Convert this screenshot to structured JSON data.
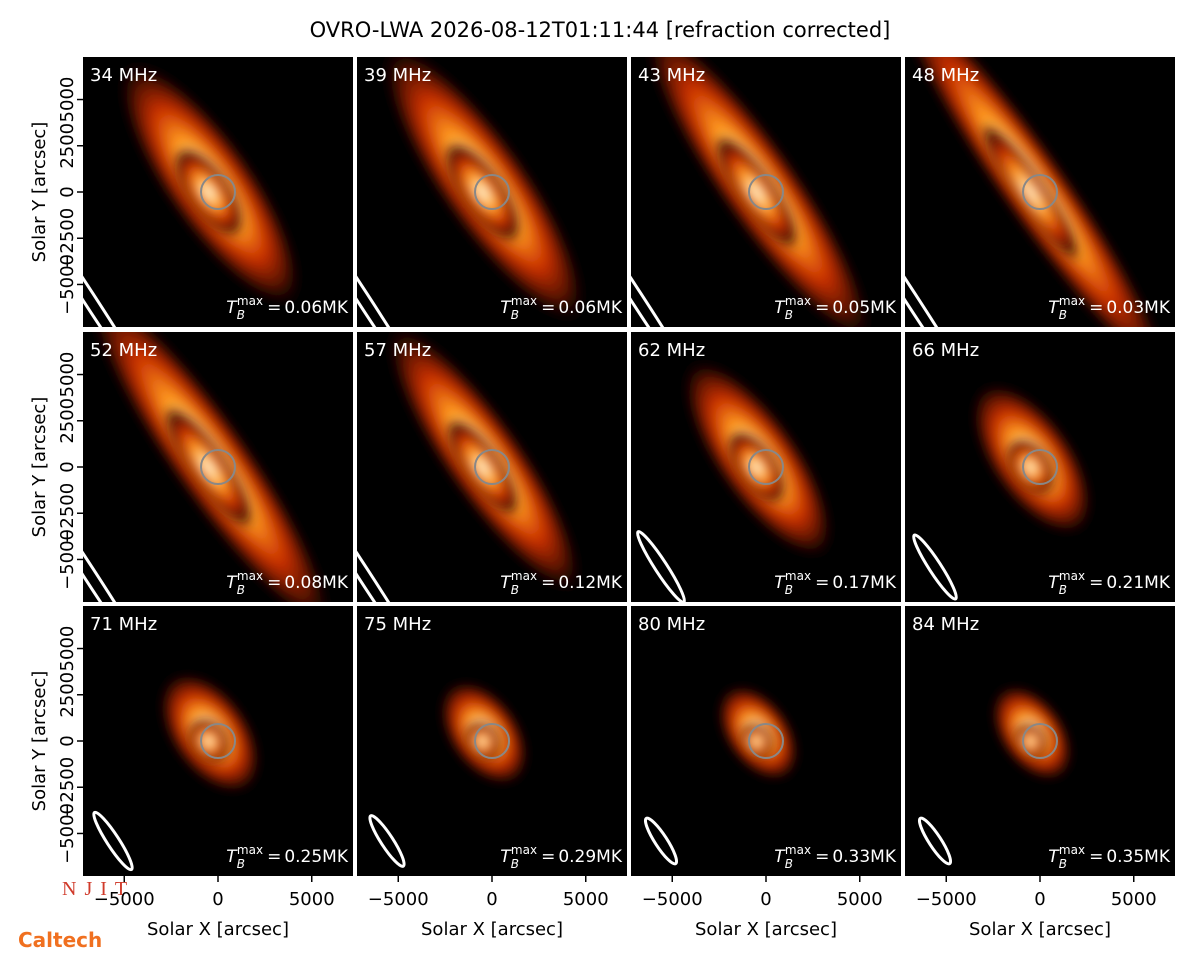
{
  "chart_data": {
    "type": "image-grid",
    "title": "OVRO-LWA 2026-08-12T01:11:44 [refraction corrected]",
    "x_label": "Solar X [arcsec]",
    "y_label": "Solar Y [arcsec]",
    "xlim": [
      -7200,
      7200
    ],
    "ylim": [
      -7300,
      7300
    ],
    "xticks": [
      {
        "value": -5000,
        "label": "−5000"
      },
      0,
      5000
    ],
    "yticks": [
      {
        "value": -5000,
        "label": "−5000"
      },
      {
        "value": -2500,
        "label": "−2500"
      },
      0,
      2500,
      5000
    ],
    "tb_label": {
      "base": "T",
      "sub": "B",
      "sup": "max",
      "eq": "="
    },
    "panels": [
      {
        "label": "34 MHz",
        "tb": "0.06MK"
      },
      {
        "label": "39 MHz",
        "tb": "0.06MK"
      },
      {
        "label": "43 MHz",
        "tb": "0.05MK"
      },
      {
        "label": "48 MHz",
        "tb": "0.03MK"
      },
      {
        "label": "52 MHz",
        "tb": "0.08MK"
      },
      {
        "label": "57 MHz",
        "tb": "0.12MK"
      },
      {
        "label": "62 MHz",
        "tb": "0.17MK"
      },
      {
        "label": "66 MHz",
        "tb": "0.21MK"
      },
      {
        "label": "71 MHz",
        "tb": "0.25MK"
      },
      {
        "label": "75 MHz",
        "tb": "0.29MK"
      },
      {
        "label": "80 MHz",
        "tb": "0.33MK"
      },
      {
        "label": "84 MHz",
        "tb": "0.35MK"
      }
    ],
    "logos": [
      "NJIT",
      "Caltech"
    ]
  }
}
